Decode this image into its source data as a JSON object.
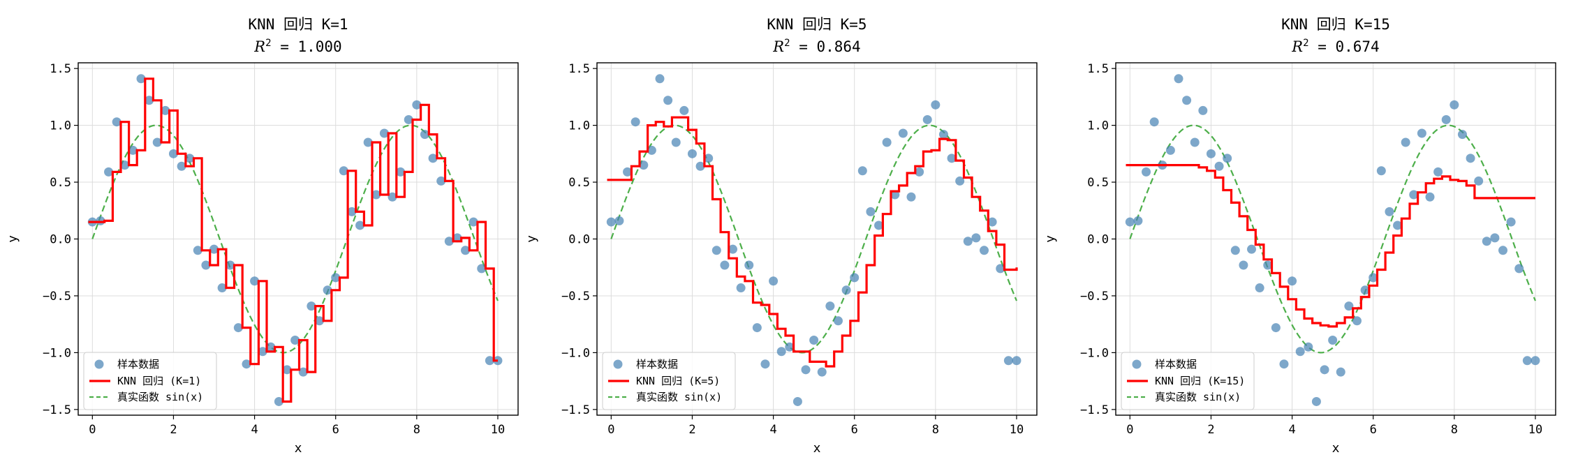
{
  "chart_data": [
    {
      "type": "line",
      "title": "KNN 回归 K=1",
      "subtitle_prefix": "R",
      "subtitle_sup": "2",
      "subtitle_value": " = 1.000",
      "xlabel": "x",
      "ylabel": "y",
      "xlim": [
        -0.35,
        10.5
      ],
      "ylim": [
        -1.55,
        1.55
      ],
      "xticks": [
        0,
        2,
        4,
        6,
        8,
        10
      ],
      "yticks": [
        -1.5,
        -1.0,
        -0.5,
        0.0,
        0.5,
        1.0,
        1.5
      ],
      "ytick_labels": [
        "−1.5",
        "−1.0",
        "−0.5",
        "0.0",
        "0.5",
        "1.0",
        "1.5"
      ],
      "grid": true,
      "legend_position": "lower-left",
      "legend": [
        "样本数据",
        "KNN 回归 (K=1)",
        "真实函数 sin(x)"
      ],
      "k": 1,
      "pred_y": [
        0.15,
        0.15,
        0.16,
        0.59,
        1.03,
        0.65,
        0.78,
        1.41,
        1.22,
        0.85,
        1.13,
        0.75,
        0.64,
        0.71,
        -0.1,
        -0.23,
        -0.09,
        -0.43,
        -0.23,
        -0.78,
        -1.1,
        -0.37,
        -0.99,
        -0.95,
        -1.43,
        -1.15,
        -0.89,
        -1.17,
        -0.59,
        -0.72,
        -0.45,
        -0.34,
        0.6,
        0.24,
        0.12,
        0.85,
        0.39,
        0.93,
        0.37,
        0.59,
        1.05,
        1.18,
        0.92,
        0.71,
        0.51,
        -0.02,
        0.01,
        -0.1,
        0.15,
        -0.26,
        -1.07,
        -1.07
      ],
      "colors": {
        "points": "#4682b4",
        "knn": "#ff0000",
        "true": "#4daf4a"
      }
    },
    {
      "type": "line",
      "title": "KNN 回归 K=5",
      "subtitle_prefix": "R",
      "subtitle_sup": "2",
      "subtitle_value": " = 0.864",
      "xlabel": "x",
      "ylabel": "y",
      "xlim": [
        -0.35,
        10.5
      ],
      "ylim": [
        -1.55,
        1.55
      ],
      "xticks": [
        0,
        2,
        4,
        6,
        8,
        10
      ],
      "yticks": [
        -1.5,
        -1.0,
        -0.5,
        0.0,
        0.5,
        1.0,
        1.5
      ],
      "ytick_labels": [
        "−1.5",
        "−1.0",
        "−0.5",
        "0.0",
        "0.5",
        "1.0",
        "1.5"
      ],
      "grid": true,
      "legend_position": "lower-left",
      "legend": [
        "样本数据",
        "KNN 回归 (K=5)",
        "真实函数 sin(x)"
      ],
      "k": 5,
      "pred_y": [
        0.52,
        0.52,
        0.52,
        0.64,
        0.77,
        1.0,
        1.03,
        0.99,
        1.07,
        1.07,
        0.96,
        0.84,
        0.64,
        0.35,
        0.06,
        -0.17,
        -0.33,
        -0.37,
        -0.56,
        -0.58,
        -0.66,
        -0.79,
        -0.85,
        -0.99,
        -0.99,
        -1.08,
        -1.08,
        -1.12,
        -0.99,
        -0.85,
        -0.72,
        -0.47,
        -0.23,
        0.03,
        0.22,
        0.42,
        0.47,
        0.58,
        0.64,
        0.77,
        0.78,
        0.88,
        0.87,
        0.69,
        0.54,
        0.37,
        0.25,
        0.07,
        -0.05,
        -0.27,
        -0.27,
        -0.25
      ],
      "colors": {
        "points": "#4682b4",
        "knn": "#ff0000",
        "true": "#4daf4a"
      }
    },
    {
      "type": "line",
      "title": "KNN 回归 K=15",
      "subtitle_prefix": "R",
      "subtitle_sup": "2",
      "subtitle_value": " = 0.674",
      "xlabel": "x",
      "ylabel": "y",
      "xlim": [
        -0.35,
        10.5
      ],
      "ylim": [
        -1.55,
        1.55
      ],
      "xticks": [
        0,
        2,
        4,
        6,
        8,
        10
      ],
      "yticks": [
        -1.5,
        -1.0,
        -0.5,
        0.0,
        0.5,
        1.0,
        1.5
      ],
      "ytick_labels": [
        "−1.5",
        "−1.0",
        "−0.5",
        "0.0",
        "0.5",
        "1.0",
        "1.5"
      ],
      "grid": true,
      "legend_position": "lower-left",
      "legend": [
        "样本数据",
        "KNN 回归 (K=15)",
        "真实函数 sin(x)"
      ],
      "k": 15,
      "pred_y": [
        0.65,
        0.65,
        0.65,
        0.65,
        0.65,
        0.65,
        0.65,
        0.65,
        0.65,
        0.63,
        0.6,
        0.54,
        0.43,
        0.32,
        0.2,
        0.08,
        -0.05,
        -0.18,
        -0.3,
        -0.42,
        -0.53,
        -0.62,
        -0.7,
        -0.74,
        -0.76,
        -0.77,
        -0.74,
        -0.69,
        -0.61,
        -0.51,
        -0.41,
        -0.27,
        -0.12,
        0.03,
        0.18,
        0.31,
        0.41,
        0.49,
        0.53,
        0.55,
        0.52,
        0.51,
        0.47,
        0.36,
        0.36,
        0.36,
        0.36,
        0.36,
        0.36,
        0.36,
        0.36,
        0.36
      ],
      "colors": {
        "points": "#4682b4",
        "knn": "#ff0000",
        "true": "#4daf4a"
      }
    }
  ],
  "samples": {
    "x": [
      0.0,
      0.2,
      0.4,
      0.6,
      0.8,
      1.0,
      1.2,
      1.4,
      1.6,
      1.8,
      2.0,
      2.2,
      2.4,
      2.6,
      2.8,
      3.0,
      3.2,
      3.4,
      3.6,
      3.8,
      4.0,
      4.2,
      4.4,
      4.6,
      4.8,
      5.0,
      5.2,
      5.4,
      5.6,
      5.8,
      6.0,
      6.2,
      6.4,
      6.6,
      6.8,
      7.0,
      7.2,
      7.4,
      7.6,
      7.8,
      8.0,
      8.2,
      8.4,
      8.6,
      8.8,
      9.0,
      9.2,
      9.4,
      9.6,
      9.8,
      10.0
    ],
    "y": [
      0.15,
      0.16,
      0.59,
      1.03,
      0.65,
      0.78,
      1.41,
      1.22,
      0.85,
      1.13,
      0.75,
      0.64,
      0.71,
      -0.1,
      -0.23,
      -0.09,
      -0.43,
      -0.23,
      -0.78,
      -1.1,
      -0.37,
      -0.99,
      -0.95,
      -1.43,
      -1.15,
      -0.89,
      -1.17,
      -0.59,
      -0.72,
      -0.45,
      -0.34,
      0.6,
      0.24,
      0.12,
      0.85,
      0.39,
      0.93,
      0.37,
      0.59,
      1.05,
      1.18,
      0.92,
      0.71,
      0.51,
      -0.02,
      0.01,
      -0.1,
      0.15,
      -0.26,
      -1.07,
      -1.07
    ]
  },
  "pred_x": [
    -0.1,
    0.1,
    0.3,
    0.5,
    0.7,
    0.9,
    1.1,
    1.3,
    1.5,
    1.7,
    1.9,
    2.1,
    2.3,
    2.5,
    2.7,
    2.9,
    3.1,
    3.3,
    3.5,
    3.7,
    3.9,
    4.1,
    4.3,
    4.5,
    4.7,
    4.9,
    5.1,
    5.3,
    5.5,
    5.7,
    5.9,
    6.1,
    6.3,
    6.5,
    6.7,
    6.9,
    7.1,
    7.3,
    7.5,
    7.7,
    7.9,
    8.1,
    8.3,
    8.5,
    8.7,
    8.9,
    9.1,
    9.3,
    9.5,
    9.7,
    9.9,
    10.0
  ],
  "true_function": {
    "x_start": 0,
    "x_end": 10
  }
}
